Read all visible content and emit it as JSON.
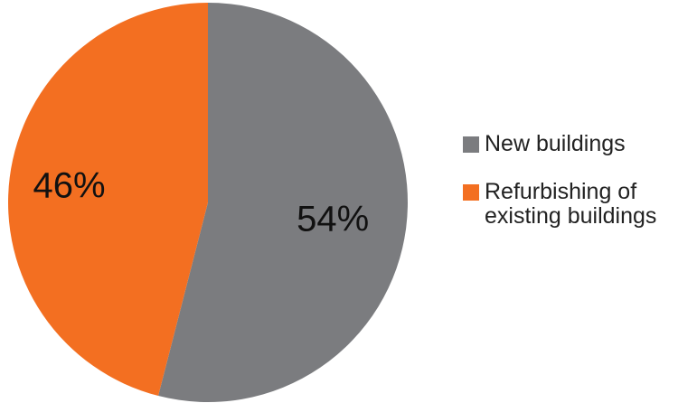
{
  "chart_data": {
    "type": "pie",
    "title": "",
    "slices": [
      {
        "name": "New buildings",
        "value": 54,
        "label": "54%",
        "color": "#7b7c7f"
      },
      {
        "name": "Refurbishing of\nexisting buildings",
        "value": 46,
        "label": "46%",
        "color": "#f36f21"
      }
    ],
    "start_angle": "12 o'clock",
    "direction": "clockwise",
    "legend_position": "right"
  }
}
